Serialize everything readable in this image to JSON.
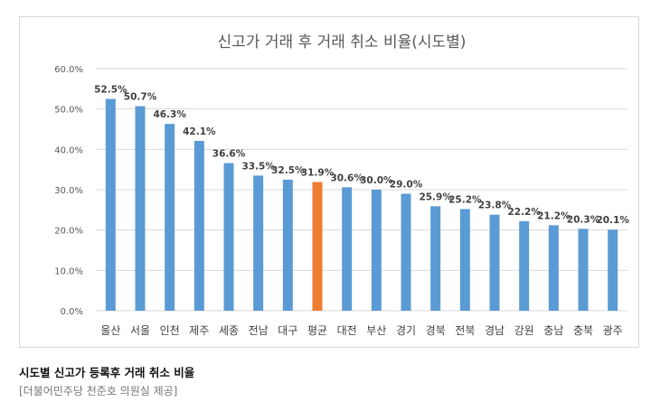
{
  "chart_data": {
    "type": "bar",
    "title": "신고가 거래 후 거래 취소 비율(시도별)",
    "categories": [
      "울산",
      "서울",
      "인천",
      "제주",
      "세종",
      "전남",
      "대구",
      "평균",
      "대전",
      "부산",
      "경기",
      "경북",
      "전북",
      "경남",
      "강원",
      "충남",
      "충북",
      "광주"
    ],
    "values": [
      52.5,
      50.7,
      46.3,
      42.1,
      36.6,
      33.5,
      32.5,
      31.9,
      30.6,
      30.0,
      29.0,
      25.9,
      25.2,
      23.8,
      22.2,
      21.2,
      20.3,
      20.1
    ],
    "value_labels": [
      "52.5%",
      "50.7%",
      "46.3%",
      "42.1%",
      "36.6%",
      "33.5%",
      "32.5%",
      "31.9%",
      "30.6%",
      "30.0%",
      "29.0%",
      "25.9%",
      "25.2%",
      "23.8%",
      "22.2%",
      "21.2%",
      "20.3%",
      "20.1%"
    ],
    "y_ticks": [
      "0.0%",
      "10.0%",
      "20.0%",
      "30.0%",
      "40.0%",
      "50.0%",
      "60.0%"
    ],
    "ylim": [
      0,
      60
    ],
    "grid": true,
    "legend": "none",
    "xlabel": "",
    "ylabel": "",
    "colors": {
      "bar": "#5b9bd5",
      "highlight": "#ed7d31",
      "grid": "#d9d9d9"
    },
    "highlight_category": "평균"
  },
  "caption": {
    "title": "시도별 신고가 등록후 거래 취소 비율",
    "source": "[더불어민주당 천준호 의원실 제공]"
  }
}
